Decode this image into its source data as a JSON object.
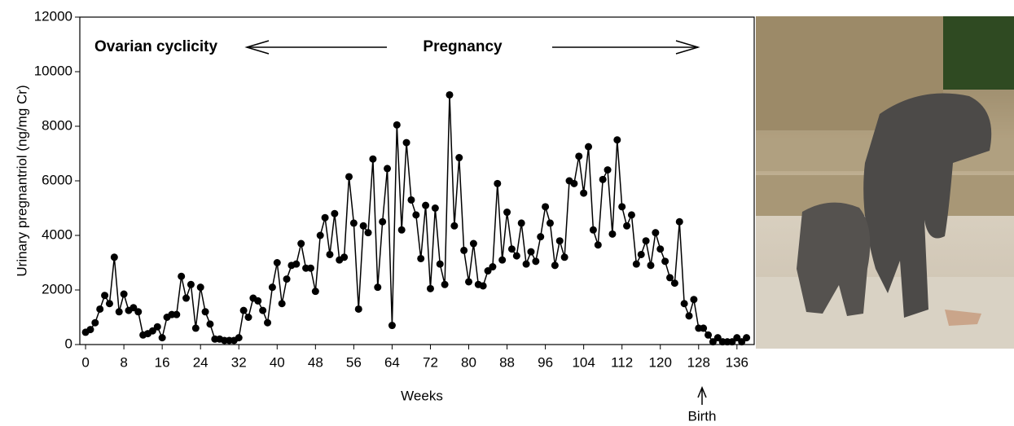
{
  "chart_data": {
    "type": "line",
    "xlabel": "Weeks",
    "ylabel": "Urinary pregnantriol (ng/mg Cr)",
    "annotations": [
      "Ovarian cyclicity",
      "Pregnancy",
      "Birth"
    ],
    "x": [
      0,
      1,
      2,
      3,
      4,
      5,
      6,
      7,
      8,
      9,
      10,
      11,
      12,
      13,
      14,
      15,
      16,
      17,
      18,
      19,
      20,
      21,
      22,
      23,
      24,
      25,
      26,
      27,
      28,
      29,
      30,
      31,
      32,
      33,
      34,
      35,
      36,
      37,
      38,
      39,
      40,
      41,
      42,
      43,
      44,
      45,
      46,
      47,
      48,
      49,
      50,
      51,
      52,
      53,
      54,
      55,
      56,
      57,
      58,
      59,
      60,
      61,
      62,
      63,
      64,
      65,
      66,
      67,
      68,
      69,
      70,
      71,
      72,
      73,
      74,
      75,
      76,
      77,
      78,
      79,
      80,
      81,
      82,
      83,
      84,
      85,
      86,
      87,
      88,
      89,
      90,
      91,
      92,
      93,
      94,
      95,
      96,
      97,
      98,
      99,
      100,
      101,
      102,
      103,
      104,
      105,
      106,
      107,
      108,
      109,
      110,
      111,
      112,
      113,
      114,
      115,
      116,
      117,
      118,
      119,
      120,
      121,
      122,
      123,
      124,
      125,
      126,
      127,
      128,
      129,
      130,
      131,
      132,
      133,
      134,
      135,
      136,
      137,
      138
    ],
    "series": [
      {
        "color": "#000000",
        "values": [
          450,
          550,
          800,
          1300,
          1800,
          1500,
          3200,
          1200,
          1850,
          1250,
          1350,
          1200,
          350,
          400,
          500,
          650,
          250,
          1000,
          1100,
          1100,
          2500,
          1700,
          2200,
          600,
          2100,
          1200,
          750,
          200,
          200,
          150,
          150,
          150,
          250,
          1250,
          1000,
          1700,
          1600,
          1250,
          800,
          2100,
          3000,
          1500,
          2400,
          2900,
          2950,
          3700,
          2800,
          2800,
          1950,
          4000,
          4650,
          3300,
          4800,
          3100,
          3200,
          6150,
          4450,
          1300,
          4350,
          4100,
          6800,
          2100,
          4500,
          6450,
          700,
          8050,
          4200,
          7400,
          5300,
          4750,
          3150,
          5100,
          2050,
          5000,
          2950,
          2200,
          9150,
          4350,
          6850,
          3450,
          2300,
          3700,
          2200,
          2150,
          2700,
          2850,
          5900,
          3100,
          4850,
          3500,
          3250,
          4450,
          2950,
          3400,
          3050,
          3950,
          5050,
          4450,
          2900,
          3800,
          3200,
          6000,
          5900,
          6900,
          5550,
          7250,
          4200,
          3650,
          6050,
          6400,
          4050,
          7500,
          5050,
          4350,
          4750,
          2950,
          3300,
          3800,
          2900,
          4100,
          3500,
          3050,
          2450,
          2250,
          4500,
          1500,
          1050,
          1650,
          600,
          600,
          350,
          100,
          250,
          100,
          100,
          100,
          250,
          100,
          250
        ]
      }
    ],
    "xlim": [
      -1.2,
      139.6
    ],
    "ylim": [
      0,
      12000
    ],
    "xticks": [
      0,
      8,
      16,
      24,
      32,
      40,
      48,
      56,
      64,
      72,
      80,
      88,
      96,
      104,
      112,
      120,
      128,
      136
    ],
    "yticks": [
      0,
      2000,
      4000,
      6000,
      8000,
      10000,
      12000
    ]
  }
}
